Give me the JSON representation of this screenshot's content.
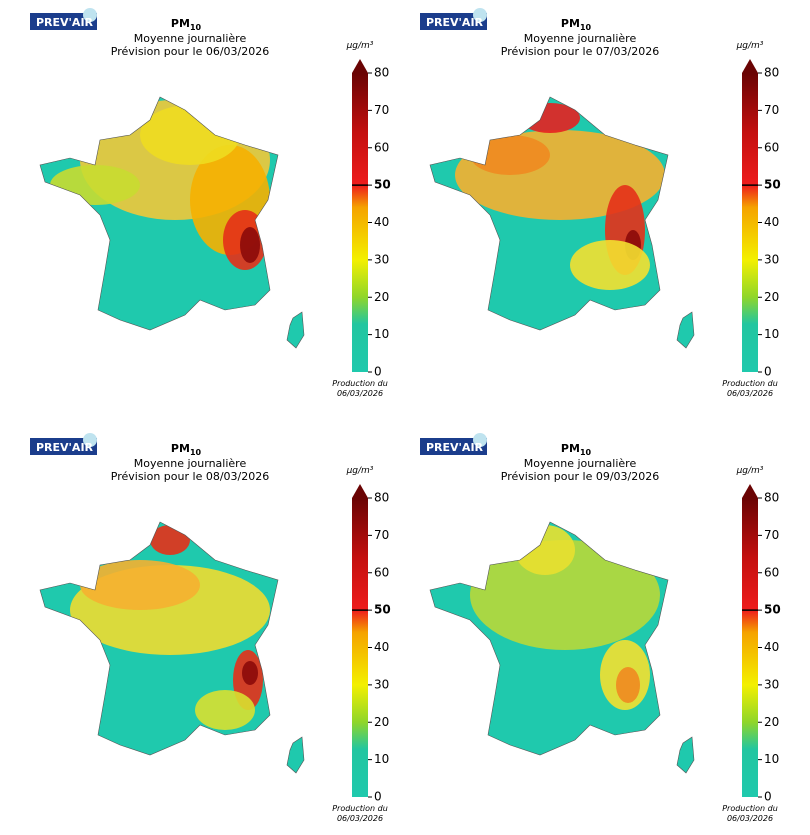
{
  "panels": [
    {
      "logo": "PREV'AIR",
      "title": "PM",
      "title_sub": "10",
      "subtitle": "Moyenne journalière",
      "forecast": "Prévision pour le 06/03/2026",
      "unit": "µg/m³",
      "colorbar_ticks": [
        0,
        10,
        20,
        30,
        40,
        50,
        60,
        70,
        80
      ],
      "threshold": 50,
      "production": [
        "Production du",
        "06/03/2026"
      ]
    },
    {
      "logo": "PREV'AIR",
      "title": "PM",
      "title_sub": "10",
      "subtitle": "Moyenne journalière",
      "forecast": "Prévision pour le 07/03/2026",
      "unit": "µg/m³",
      "colorbar_ticks": [
        0,
        10,
        20,
        30,
        40,
        50,
        60,
        70,
        80
      ],
      "threshold": 50,
      "production": [
        "Production du",
        "06/03/2026"
      ]
    },
    {
      "logo": "PREV'AIR",
      "title": "PM",
      "title_sub": "10",
      "subtitle": "Moyenne journalière",
      "forecast": "Prévision pour le 08/03/2026",
      "unit": "µg/m³",
      "colorbar_ticks": [
        0,
        10,
        20,
        30,
        40,
        50,
        60,
        70,
        80
      ],
      "threshold": 50,
      "production": [
        "Production du",
        "06/03/2026"
      ]
    },
    {
      "logo": "PREV'AIR",
      "title": "PM",
      "title_sub": "10",
      "subtitle": "Moyenne journalière",
      "forecast": "Prévision pour le 09/03/2026",
      "unit": "µg/m³",
      "colorbar_ticks": [
        0,
        10,
        20,
        30,
        40,
        50,
        60,
        70,
        80
      ],
      "threshold": 50,
      "production": [
        "Production du",
        "06/03/2026"
      ]
    }
  ]
}
